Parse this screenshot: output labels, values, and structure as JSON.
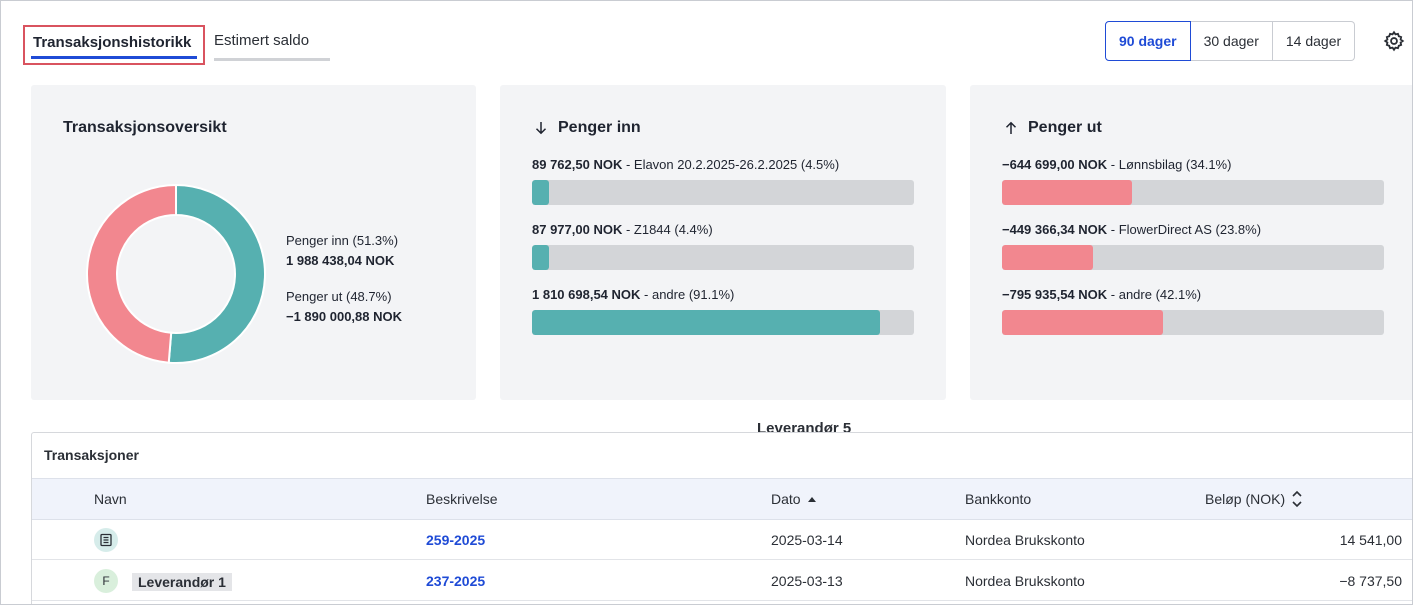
{
  "tabs": [
    {
      "label": "Transaksjonshistorikk",
      "active": true
    },
    {
      "label": "Estimert saldo",
      "active": false
    }
  ],
  "periods": [
    {
      "label": "90 dager",
      "selected": true
    },
    {
      "label": "30 dager",
      "selected": false
    },
    {
      "label": "14 dager",
      "selected": false
    }
  ],
  "settings_icon": "gear-icon",
  "overview": {
    "title": "Transaksjonsoversikt",
    "in_label": "Penger inn",
    "in_pct": "(51.3%)",
    "in_value": "1 988 438,04 NOK",
    "out_label": "Penger ut",
    "out_pct": "(48.7%)",
    "out_value": "−1 890 000,88 NOK",
    "chart_data": {
      "type": "pie",
      "categories": [
        "Penger inn",
        "Penger ut"
      ],
      "values": [
        51.3,
        48.7
      ],
      "colors": [
        "#56b0b0",
        "#f2878f"
      ]
    }
  },
  "money_in": {
    "title": "Penger inn",
    "icon": "arrow-down-icon",
    "color": "#56b0b0",
    "items": [
      {
        "amount": "89 762,50 NOK",
        "desc": " - Elavon 20.2.2025-26.2.2025 (4.5%)",
        "pct": 4.5
      },
      {
        "amount": "87 977,00 NOK",
        "desc": " - Z1844 (4.4%)",
        "pct": 4.4
      },
      {
        "amount": "1 810 698,54 NOK",
        "desc": " - andre (91.1%)",
        "pct": 91.1
      }
    ]
  },
  "money_out": {
    "title": "Penger ut",
    "icon": "arrow-up-icon",
    "color": "#f2878f",
    "items": [
      {
        "amount": "−644 699,00 NOK",
        "desc": " - Lønnsbilag (34.1%)",
        "pct": 34.1
      },
      {
        "amount": "−449 366,34 NOK",
        "desc": " - FlowerDirect AS (23.8%)",
        "pct": 23.8
      },
      {
        "amount": "−795 935,54 NOK",
        "desc": " - andre (42.1%)",
        "pct": 42.1
      }
    ]
  },
  "floating_label": "Leverandør 5",
  "table": {
    "title": "Transaksjoner",
    "columns": {
      "name": "Navn",
      "desc": "Beskrivelse",
      "date": "Dato",
      "account": "Bankkonto",
      "amount": "Beløp (NOK)"
    },
    "rows": [
      {
        "avatar": "document-icon",
        "name": "",
        "desc": "259-2025",
        "date": "2025-03-14",
        "account": "Nordea Brukskonto",
        "amount": "14 541,00"
      },
      {
        "avatar": "F",
        "name": "Leverandør 1",
        "desc": "237-2025",
        "date": "2025-03-13",
        "account": "Nordea Brukskonto",
        "amount": "−8 737,50"
      }
    ]
  }
}
